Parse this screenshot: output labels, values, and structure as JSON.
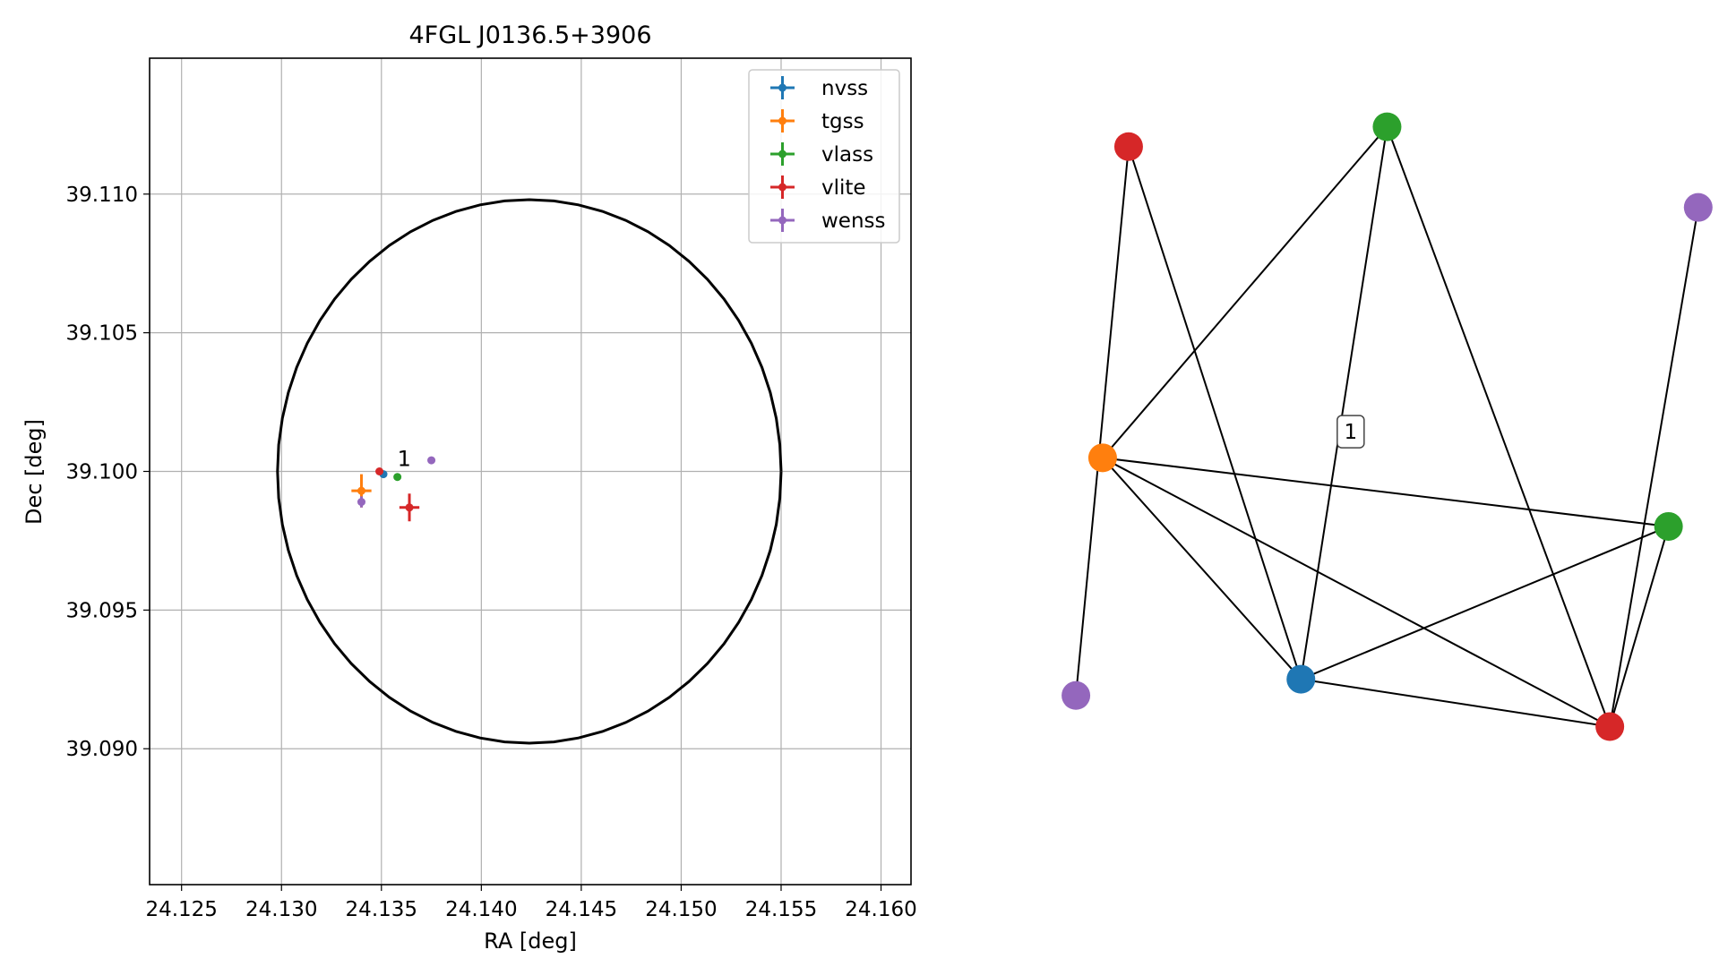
{
  "chart_data": [
    {
      "type": "scatter",
      "title": "4FGL J0136.5+3906",
      "xlabel": "RA [deg]",
      "ylabel": "Dec [deg]",
      "xlim": [
        24.1234,
        24.1615
      ],
      "ylim": [
        39.0851,
        39.1149
      ],
      "grid": true,
      "legend_position": "top-right",
      "x_ticks": [
        24.125,
        24.13,
        24.135,
        24.14,
        24.145,
        24.15,
        24.155,
        24.16
      ],
      "x_tick_labels": [
        "24.125",
        "24.130",
        "24.135",
        "24.140",
        "24.145",
        "24.150",
        "24.155",
        "24.160"
      ],
      "y_ticks": [
        39.09,
        39.095,
        39.1,
        39.105,
        39.11
      ],
      "y_tick_labels": [
        "39.090",
        "39.095",
        "39.100",
        "39.105",
        "39.110"
      ],
      "ellipse": {
        "center": [
          24.1424,
          39.1
        ],
        "semi_axes": [
          0.0126,
          0.0098
        ],
        "color": "#000000"
      },
      "series": [
        {
          "name": "nvss",
          "color": "#1f77b4",
          "points": [
            {
              "x": 24.1351,
              "y": 39.0999,
              "xerr": 0.0001,
              "yerr": 0.0001
            }
          ]
        },
        {
          "name": "tgss",
          "color": "#ff7f0e",
          "points": [
            {
              "x": 24.134,
              "y": 39.0993,
              "xerr": 0.0005,
              "yerr": 0.0006
            }
          ]
        },
        {
          "name": "vlass",
          "color": "#2ca02c",
          "points": [
            {
              "x": 24.1358,
              "y": 39.0998,
              "xerr": 0.0001,
              "yerr": 0.0001
            }
          ]
        },
        {
          "name": "vlite",
          "color": "#d62728",
          "points": [
            {
              "x": 24.1349,
              "y": 39.1,
              "xerr": 0.0001,
              "yerr": 0.0001
            },
            {
              "x": 24.1364,
              "y": 39.0987,
              "xerr": 0.0005,
              "yerr": 0.0005
            }
          ]
        },
        {
          "name": "wenss",
          "color": "#9467bd",
          "points": [
            {
              "x": 24.134,
              "y": 39.0989,
              "xerr": 0.0001,
              "yerr": 0.0002
            },
            {
              "x": 24.1375,
              "y": 39.1004,
              "xerr": 0.0001,
              "yerr": 0.0001
            }
          ]
        }
      ],
      "annotations": [
        {
          "text": "1",
          "x": 24.1358,
          "y": 39.1002
        }
      ]
    },
    {
      "type": "network",
      "nodes": [
        {
          "id": "red_top",
          "color": "#d62728",
          "x": 0.205,
          "y": 0.068
        },
        {
          "id": "green_top",
          "color": "#2ca02c",
          "x": 0.553,
          "y": 0.04
        },
        {
          "id": "purple_right",
          "color": "#9467bd",
          "x": 0.972,
          "y": 0.154
        },
        {
          "id": "orange",
          "color": "#ff7f0e",
          "x": 0.17,
          "y": 0.508
        },
        {
          "id": "green_right",
          "color": "#2ca02c",
          "x": 0.932,
          "y": 0.605
        },
        {
          "id": "purple_left",
          "color": "#9467bd",
          "x": 0.134,
          "y": 0.844
        },
        {
          "id": "blue",
          "color": "#1f77b4",
          "x": 0.437,
          "y": 0.821
        },
        {
          "id": "red_bottom",
          "color": "#d62728",
          "x": 0.853,
          "y": 0.888
        }
      ],
      "edges": [
        [
          "red_top",
          "purple_left"
        ],
        [
          "red_top",
          "blue"
        ],
        [
          "green_top",
          "orange"
        ],
        [
          "green_top",
          "blue"
        ],
        [
          "green_top",
          "red_bottom"
        ],
        [
          "purple_right",
          "red_bottom"
        ],
        [
          "orange",
          "green_right"
        ],
        [
          "orange",
          "blue"
        ],
        [
          "orange",
          "red_bottom"
        ],
        [
          "blue",
          "green_right"
        ],
        [
          "blue",
          "red_bottom"
        ],
        [
          "green_right",
          "red_bottom"
        ]
      ],
      "label": {
        "text": "1",
        "x": 0.504,
        "y": 0.471
      }
    }
  ]
}
